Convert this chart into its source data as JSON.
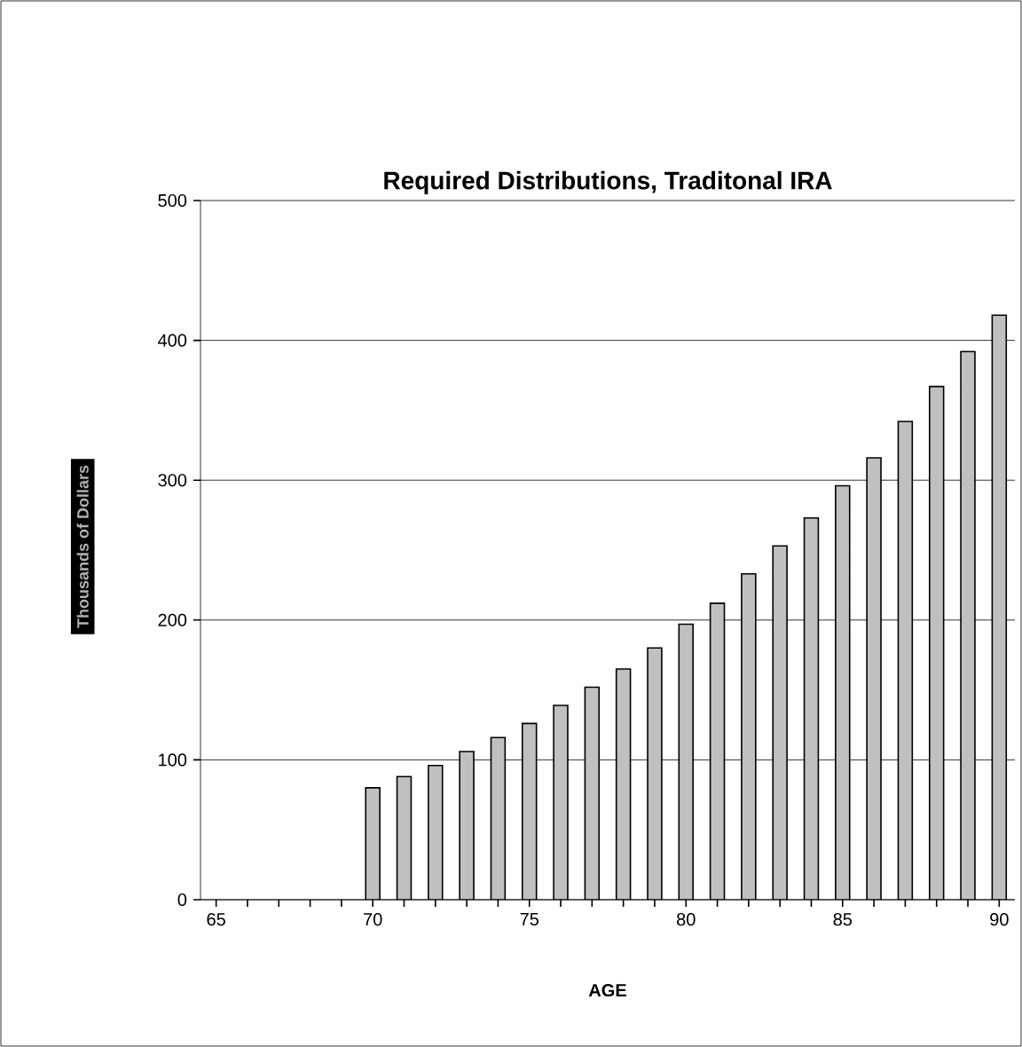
{
  "chart_data": {
    "type": "bar",
    "title": "Required Distributions, Traditonal IRA",
    "xlabel": "AGE",
    "ylabel": "Thousands of Dollars",
    "categories": [
      "65",
      null,
      null,
      null,
      null,
      "70",
      null,
      null,
      null,
      null,
      "75",
      null,
      null,
      null,
      null,
      "80",
      null,
      null,
      null,
      null,
      "85",
      null,
      null,
      null,
      null,
      "90"
    ],
    "values": [
      null,
      null,
      null,
      null,
      null,
      80,
      88,
      96,
      106,
      116,
      126,
      139,
      152,
      165,
      180,
      197,
      212,
      233,
      253,
      273,
      296,
      316,
      342,
      367,
      392,
      418
    ],
    "color": "#c0c0c0",
    "ylim": [
      0,
      500
    ],
    "yticks": [
      0,
      100,
      200,
      300,
      400,
      500
    ],
    "grid": "y"
  }
}
